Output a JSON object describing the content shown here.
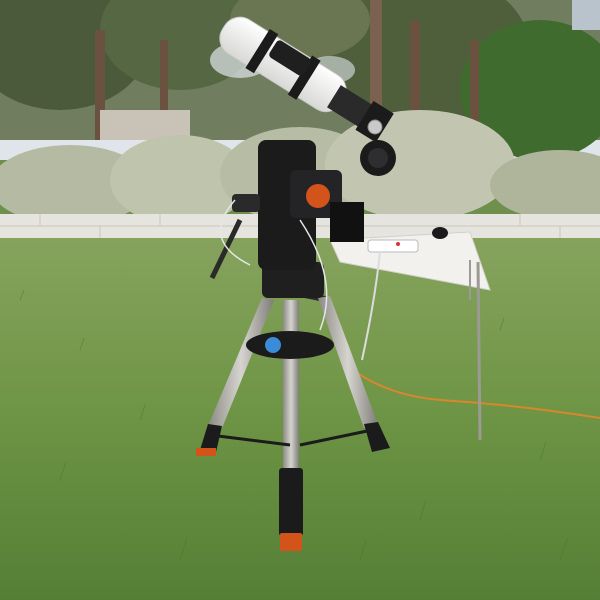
{
  "scene": {
    "subject": "telescope-on-equatorial-mount",
    "colors": {
      "sky": "#dfe5ea",
      "tree_dark": "#4a5a3a",
      "tree_mid": "#6c7d4f",
      "shrub": "#b9bfa8",
      "wall": "#e6e4de",
      "grass_far": "#7f9d58",
      "grass_near": "#5e8a3c",
      "tube_white": "#f3f3f1",
      "metal_dark": "#1b1b1c",
      "tripod_silver": "#b8b6b1",
      "accent_orange": "#d2541b",
      "cable_orange": "#d8872e",
      "table_white": "#f2f1ee"
    }
  }
}
